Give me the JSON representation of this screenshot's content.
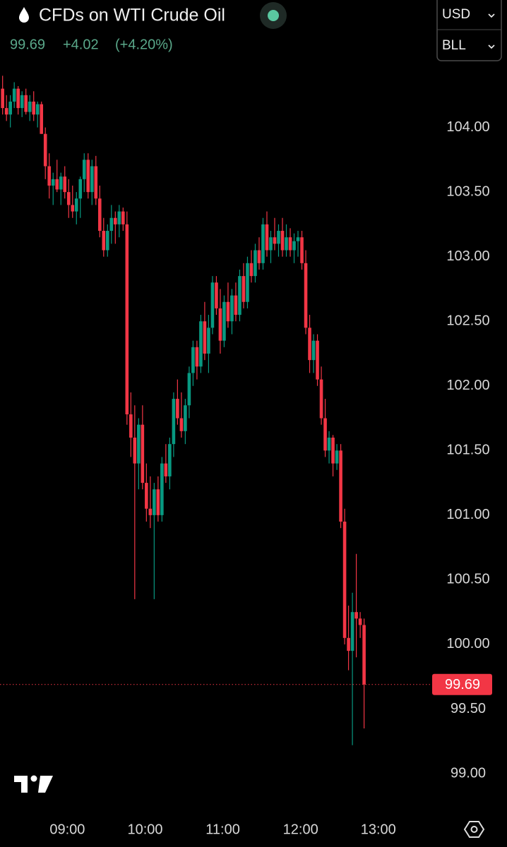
{
  "chart_data": {
    "type": "candlestick",
    "title": "CFDs on WTI Crude Oil",
    "price": "99.69",
    "change": "+4.02",
    "change_pct": "(+4.20%)",
    "currency": "USD",
    "unit": "BLL",
    "up_color": "#089981",
    "down_color": "#f23645",
    "grid": false,
    "last_price": 99.69,
    "ylim": [
      98.76,
      104.44
    ],
    "yticks": [
      {
        "value": 99,
        "label": "99.00"
      },
      {
        "value": 99.5,
        "label": "99.50"
      },
      {
        "value": 100,
        "label": "100.00"
      },
      {
        "value": 100.5,
        "label": "100.50"
      },
      {
        "value": 101,
        "label": "101.00"
      },
      {
        "value": 101.5,
        "label": "101.50"
      },
      {
        "value": 102,
        "label": "102.00"
      },
      {
        "value": 102.5,
        "label": "102.50"
      },
      {
        "value": 103,
        "label": "103.00"
      },
      {
        "value": 103.5,
        "label": "103.50"
      },
      {
        "value": 104,
        "label": "104.00"
      }
    ],
    "xlim": [
      "08:08",
      "13:35"
    ],
    "xticks": [
      "09:00",
      "10:00",
      "11:00",
      "12:00",
      "13:00"
    ],
    "x": [
      "08:10",
      "08:13",
      "08:16",
      "08:19",
      "08:22",
      "08:25",
      "08:28",
      "08:31",
      "08:34",
      "08:37",
      "08:40",
      "08:43",
      "08:46",
      "08:49",
      "08:52",
      "08:55",
      "08:58",
      "09:01",
      "09:04",
      "09:07",
      "09:10",
      "09:13",
      "09:16",
      "09:19",
      "09:22",
      "09:25",
      "09:28",
      "09:31",
      "09:34",
      "09:37",
      "09:40",
      "09:43",
      "09:46",
      "09:49",
      "09:52",
      "09:55",
      "09:58",
      "10:01",
      "10:04",
      "10:07",
      "10:10",
      "10:13",
      "10:16",
      "10:19",
      "10:22",
      "10:25",
      "10:28",
      "10:31",
      "10:34",
      "10:37",
      "10:40",
      "10:43",
      "10:46",
      "10:49",
      "10:52",
      "10:55",
      "10:58",
      "11:01",
      "11:04",
      "11:07",
      "11:10",
      "11:13",
      "11:16",
      "11:19",
      "11:22",
      "11:25",
      "11:28",
      "11:31",
      "11:34",
      "11:37",
      "11:40",
      "11:43",
      "11:46",
      "11:49",
      "11:52",
      "11:55",
      "11:58",
      "12:01",
      "12:04",
      "12:07",
      "12:10",
      "12:13",
      "12:16",
      "12:19",
      "12:22",
      "12:25",
      "12:28",
      "12:31",
      "12:34",
      "12:37",
      "12:40",
      "12:43",
      "12:46",
      "12:49"
    ],
    "ohlc": [
      [
        104.3,
        104.4,
        104.1,
        104.15
      ],
      [
        104.15,
        104.25,
        104.05,
        104.1
      ],
      [
        104.1,
        104.25,
        104.0,
        104.2
      ],
      [
        104.2,
        104.35,
        104.15,
        104.3
      ],
      [
        104.3,
        104.32,
        104.1,
        104.15
      ],
      [
        104.15,
        104.28,
        104.08,
        104.25
      ],
      [
        104.25,
        104.3,
        104.1,
        104.12
      ],
      [
        104.12,
        104.25,
        104.05,
        104.2
      ],
      [
        104.2,
        104.28,
        104.05,
        104.1
      ],
      [
        104.1,
        104.2,
        104.0,
        104.18
      ],
      [
        104.18,
        104.2,
        103.95,
        103.95
      ],
      [
        103.95,
        104.0,
        103.6,
        103.7
      ],
      [
        103.7,
        103.8,
        103.45,
        103.55
      ],
      [
        103.55,
        103.65,
        103.4,
        103.6
      ],
      [
        103.6,
        103.75,
        103.5,
        103.52
      ],
      [
        103.52,
        103.65,
        103.4,
        103.62
      ],
      [
        103.62,
        103.7,
        103.45,
        103.5
      ],
      [
        103.5,
        103.6,
        103.3,
        103.4
      ],
      [
        103.4,
        103.55,
        103.3,
        103.35
      ],
      [
        103.35,
        103.5,
        103.25,
        103.45
      ],
      [
        103.45,
        103.62,
        103.3,
        103.6
      ],
      [
        103.6,
        103.8,
        103.5,
        103.75
      ],
      [
        103.75,
        103.8,
        103.45,
        103.5
      ],
      [
        103.5,
        103.75,
        103.4,
        103.7
      ],
      [
        103.7,
        103.78,
        103.4,
        103.45
      ],
      [
        103.45,
        103.55,
        103.15,
        103.2
      ],
      [
        103.2,
        103.3,
        103.0,
        103.05
      ],
      [
        103.05,
        103.25,
        103.0,
        103.2
      ],
      [
        103.2,
        103.4,
        103.1,
        103.3
      ],
      [
        103.3,
        103.35,
        103.1,
        103.25
      ],
      [
        103.25,
        103.4,
        103.15,
        103.35
      ],
      [
        103.35,
        103.38,
        103.2,
        103.25
      ],
      [
        103.25,
        103.35,
        101.7,
        101.78
      ],
      [
        101.78,
        101.95,
        101.45,
        101.6
      ],
      [
        101.6,
        101.85,
        100.35,
        101.4
      ],
      [
        101.4,
        101.75,
        101.2,
        101.7
      ],
      [
        101.7,
        101.85,
        101.2,
        101.25
      ],
      [
        101.25,
        101.4,
        100.95,
        101.05
      ],
      [
        101.05,
        101.3,
        100.9,
        101.0
      ],
      [
        101.0,
        101.25,
        100.35,
        101.2
      ],
      [
        101.2,
        101.3,
        100.95,
        101.0
      ],
      [
        101.0,
        101.45,
        100.95,
        101.4
      ],
      [
        101.4,
        101.55,
        101.25,
        101.3
      ],
      [
        101.3,
        101.6,
        101.2,
        101.55
      ],
      [
        101.55,
        101.95,
        101.45,
        101.9
      ],
      [
        101.9,
        102.05,
        101.7,
        101.75
      ],
      [
        101.75,
        101.95,
        101.6,
        101.65
      ],
      [
        101.65,
        101.9,
        101.55,
        101.85
      ],
      [
        101.85,
        102.15,
        101.75,
        102.1
      ],
      [
        102.1,
        102.35,
        102.0,
        102.3
      ],
      [
        102.3,
        102.35,
        102.05,
        102.15
      ],
      [
        102.15,
        102.55,
        102.1,
        102.5
      ],
      [
        102.5,
        102.65,
        102.2,
        102.25
      ],
      [
        102.25,
        102.55,
        102.1,
        102.45
      ],
      [
        102.45,
        102.85,
        102.4,
        102.8
      ],
      [
        102.8,
        102.85,
        102.55,
        102.6
      ],
      [
        102.6,
        102.75,
        102.25,
        102.35
      ],
      [
        102.35,
        102.7,
        102.3,
        102.65
      ],
      [
        102.65,
        102.8,
        102.45,
        102.5
      ],
      [
        102.5,
        102.75,
        102.4,
        102.7
      ],
      [
        102.7,
        102.8,
        102.5,
        102.55
      ],
      [
        102.55,
        102.9,
        102.5,
        102.85
      ],
      [
        102.85,
        102.95,
        102.6,
        102.65
      ],
      [
        102.65,
        103.0,
        102.6,
        102.95
      ],
      [
        102.95,
        103.05,
        102.8,
        102.85
      ],
      [
        102.85,
        103.1,
        102.8,
        103.05
      ],
      [
        103.05,
        103.15,
        102.9,
        102.95
      ],
      [
        102.95,
        103.3,
        102.9,
        103.25
      ],
      [
        103.25,
        103.35,
        103.0,
        103.05
      ],
      [
        103.05,
        103.2,
        102.95,
        103.15
      ],
      [
        103.15,
        103.3,
        103.05,
        103.1
      ],
      [
        103.1,
        103.25,
        103.0,
        103.2
      ],
      [
        103.2,
        103.3,
        103.0,
        103.05
      ],
      [
        103.05,
        103.25,
        103.0,
        103.15
      ],
      [
        103.15,
        103.22,
        103.0,
        103.05
      ],
      [
        103.05,
        103.18,
        102.95,
        103.12
      ],
      [
        103.12,
        103.2,
        103.0,
        103.15
      ],
      [
        103.15,
        103.2,
        102.9,
        102.95
      ],
      [
        102.95,
        103.05,
        102.4,
        102.45
      ],
      [
        102.45,
        102.55,
        102.1,
        102.2
      ],
      [
        102.2,
        102.4,
        102.1,
        102.35
      ],
      [
        102.35,
        102.4,
        102.0,
        102.05
      ],
      [
        102.05,
        102.15,
        101.7,
        101.75
      ],
      [
        101.75,
        101.9,
        101.45,
        101.5
      ],
      [
        101.5,
        101.65,
        101.4,
        101.6
      ],
      [
        101.6,
        101.62,
        101.3,
        101.4
      ],
      [
        101.4,
        101.55,
        101.35,
        101.5
      ],
      [
        101.5,
        101.55,
        100.9,
        100.95
      ],
      [
        100.95,
        101.05,
        100.0,
        100.05
      ],
      [
        100.05,
        100.3,
        99.8,
        99.95
      ],
      [
        99.95,
        100.4,
        99.22,
        100.25
      ],
      [
        100.25,
        100.7,
        99.9,
        100.2
      ],
      [
        100.2,
        100.25,
        100.05,
        100.15
      ],
      [
        100.15,
        100.2,
        99.35,
        99.69
      ]
    ]
  }
}
